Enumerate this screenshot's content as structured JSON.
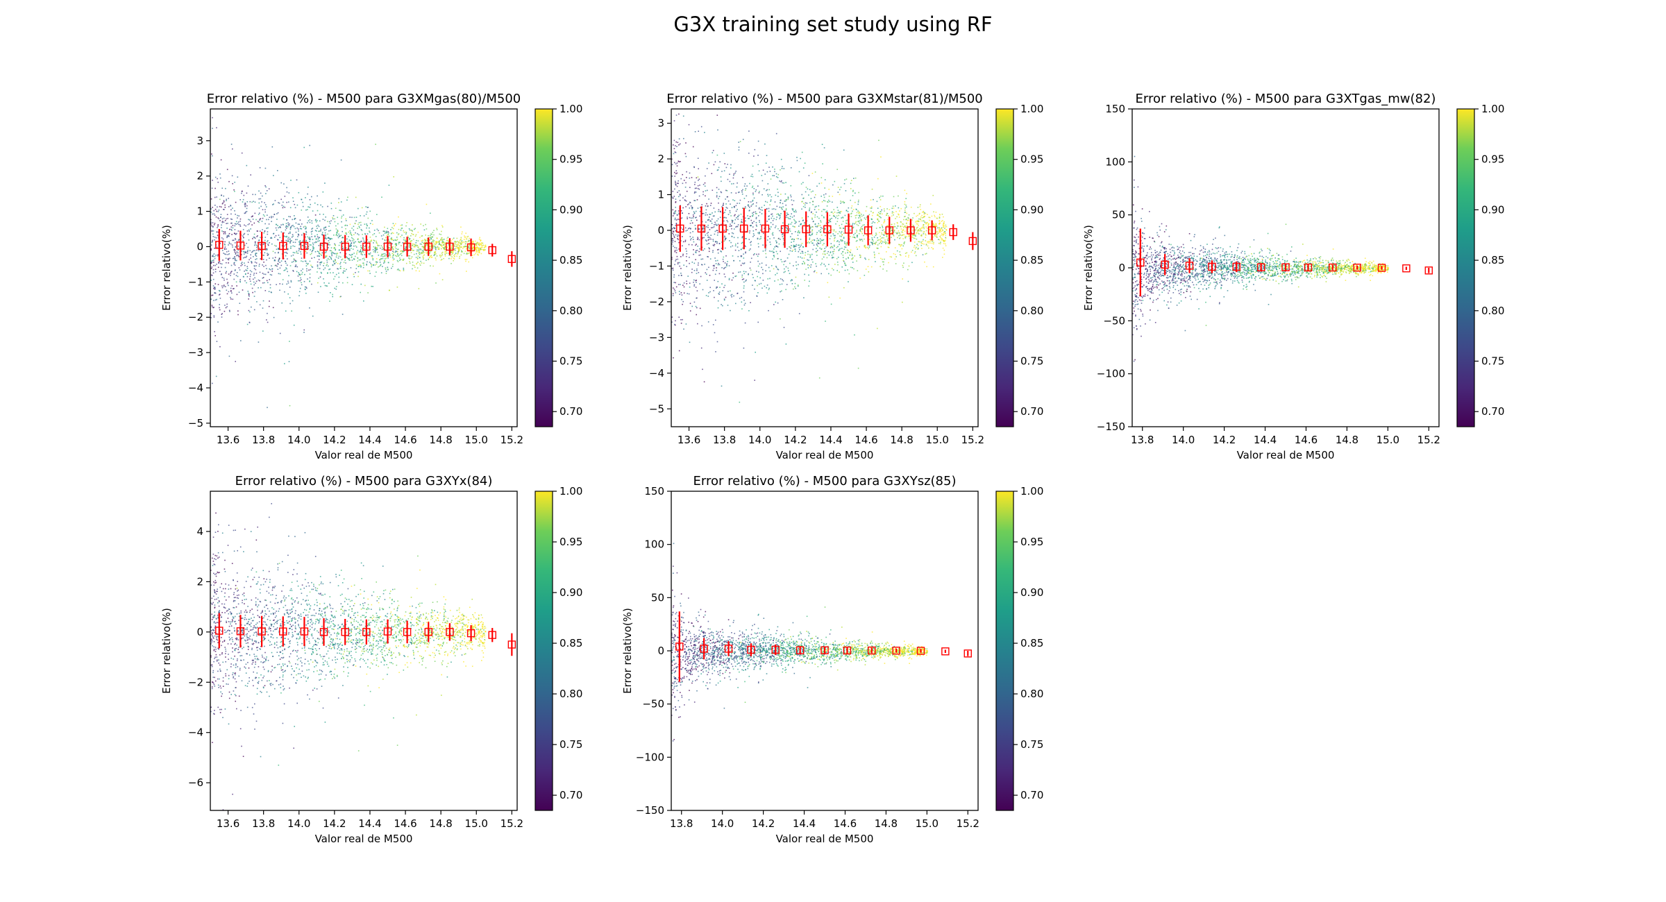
{
  "suptitle": "G3X training set study using RF",
  "colorbar": {
    "min": 0.685,
    "max": 1.0,
    "ticks": [
      "0.70",
      "0.75",
      "0.80",
      "0.85",
      "0.90",
      "0.95",
      "1.00"
    ],
    "tick_values": [
      0.7,
      0.75,
      0.8,
      0.85,
      0.9,
      0.95,
      1.0
    ],
    "colormap": "viridis"
  },
  "chart_data": [
    {
      "type": "scatter",
      "title": "Error relativo (%) - M500 para G3XMgas(80)/M500",
      "xlabel": "Valor real de M500",
      "ylabel": "Error relativo(%)",
      "xlim": [
        13.5,
        15.23
      ],
      "ylim": [
        -5.1,
        3.9
      ],
      "xticks": [
        13.6,
        13.8,
        14.0,
        14.2,
        14.4,
        14.6,
        14.8,
        15.0,
        15.2
      ],
      "xticklabels": [
        "13.6",
        "13.8",
        "14.0",
        "14.2",
        "14.4",
        "14.6",
        "14.8",
        "15.0",
        "15.2"
      ],
      "yticks": [
        -5,
        -4,
        -3,
        -2,
        -1,
        0,
        1,
        2,
        3
      ],
      "yticklabels": [
        "−5",
        "−4",
        "−3",
        "−2",
        "−1",
        "0",
        "1",
        "2",
        "3"
      ],
      "errorbars": {
        "x": [
          13.55,
          13.67,
          13.79,
          13.91,
          14.03,
          14.14,
          14.26,
          14.38,
          14.5,
          14.61,
          14.73,
          14.85,
          14.97,
          15.09,
          15.2
        ],
        "mean": [
          0.05,
          0.03,
          0.02,
          0.02,
          0.02,
          0.0,
          0.0,
          0.0,
          0.0,
          0.0,
          0.0,
          0.0,
          -0.02,
          -0.1,
          -0.35
        ],
        "err": [
          0.45,
          0.42,
          0.4,
          0.38,
          0.36,
          0.34,
          0.33,
          0.32,
          0.3,
          0.28,
          0.26,
          0.24,
          0.25,
          0.18,
          0.22
        ]
      },
      "scatter_spread": [
        1.1,
        0.95,
        0.85,
        0.75,
        0.65,
        0.55,
        0.45,
        0.35,
        0.28,
        0.2,
        0.15,
        0.1
      ],
      "scatter_xmax": 15.05
    },
    {
      "type": "scatter",
      "title": "Error relativo (%) - M500 para G3XMstar(81)/M500",
      "xlabel": "Valor real de M500",
      "ylabel": "Error relativo(%)",
      "xlim": [
        13.5,
        15.23
      ],
      "ylim": [
        -5.5,
        3.4
      ],
      "xticks": [
        13.6,
        13.8,
        14.0,
        14.2,
        14.4,
        14.6,
        14.8,
        15.0,
        15.2
      ],
      "xticklabels": [
        "13.6",
        "13.8",
        "14.0",
        "14.2",
        "14.4",
        "14.6",
        "14.8",
        "15.0",
        "15.2"
      ],
      "yticks": [
        -5,
        -4,
        -3,
        -2,
        -1,
        0,
        1,
        2,
        3
      ],
      "yticklabels": [
        "−5",
        "−4",
        "−3",
        "−2",
        "−1",
        "0",
        "1",
        "2",
        "3"
      ],
      "errorbars": {
        "x": [
          13.55,
          13.67,
          13.79,
          13.91,
          14.03,
          14.14,
          14.26,
          14.38,
          14.5,
          14.61,
          14.73,
          14.85,
          14.97,
          15.09,
          15.2
        ],
        "mean": [
          0.05,
          0.05,
          0.05,
          0.05,
          0.05,
          0.03,
          0.03,
          0.03,
          0.02,
          0.0,
          0.0,
          0.0,
          0.0,
          -0.05,
          -0.3
        ],
        "err": [
          0.65,
          0.62,
          0.6,
          0.58,
          0.55,
          0.52,
          0.5,
          0.48,
          0.45,
          0.42,
          0.38,
          0.32,
          0.28,
          0.22,
          0.25
        ]
      },
      "scatter_spread": [
        1.3,
        1.2,
        1.1,
        1.0,
        0.9,
        0.8,
        0.7,
        0.6,
        0.5,
        0.4,
        0.3,
        0.2
      ],
      "scatter_xmax": 15.05
    },
    {
      "type": "scatter",
      "title": "Error relativo (%) - M500 para G3XTgas_mw(82)",
      "xlabel": "Valor real de M500",
      "ylabel": "Error relativo(%)",
      "xlim": [
        13.75,
        15.25
      ],
      "ylim": [
        -150,
        150
      ],
      "xticks": [
        13.8,
        14.0,
        14.2,
        14.4,
        14.6,
        14.8,
        15.0,
        15.2
      ],
      "xticklabels": [
        "13.8",
        "14.0",
        "14.2",
        "14.4",
        "14.6",
        "14.8",
        "15.0",
        "15.2"
      ],
      "yticks": [
        -150,
        -100,
        -50,
        0,
        50,
        100,
        150
      ],
      "yticklabels": [
        "−150",
        "−100",
        "−50",
        "0",
        "50",
        "100",
        "150"
      ],
      "errorbars": {
        "x": [
          13.79,
          13.91,
          14.03,
          14.14,
          14.26,
          14.38,
          14.5,
          14.61,
          14.73,
          14.85,
          14.97,
          15.09,
          15.2
        ],
        "mean": [
          5,
          3,
          2,
          1,
          1,
          0.5,
          0.5,
          0.3,
          0.3,
          0.2,
          0,
          -0.5,
          -2.5
        ],
        "err": [
          32,
          10,
          7,
          6,
          5,
          4,
          3.5,
          3,
          2.5,
          2,
          1.8,
          1.5,
          2.5
        ]
      },
      "scatter_spread": [
        25,
        15,
        11,
        9,
        7,
        6,
        5,
        4,
        3,
        2.5,
        2
      ],
      "scatter_xmax": 15.0
    },
    {
      "type": "scatter",
      "title": "Error relativo (%) - M500 para G3XYx(84)",
      "xlabel": "Valor real de M500",
      "ylabel": "Error relativo(%)",
      "xlim": [
        13.5,
        15.23
      ],
      "ylim": [
        -7.1,
        5.6
      ],
      "xticks": [
        13.6,
        13.8,
        14.0,
        14.2,
        14.4,
        14.6,
        14.8,
        15.0,
        15.2
      ],
      "xticklabels": [
        "13.6",
        "13.8",
        "14.0",
        "14.2",
        "14.4",
        "14.6",
        "14.8",
        "15.0",
        "15.2"
      ],
      "yticks": [
        -6,
        -4,
        -2,
        0,
        2,
        4
      ],
      "yticklabels": [
        "−6",
        "−4",
        "−2",
        "0",
        "2",
        "4"
      ],
      "errorbars": {
        "x": [
          13.55,
          13.67,
          13.79,
          13.91,
          14.03,
          14.14,
          14.26,
          14.38,
          14.5,
          14.61,
          14.73,
          14.85,
          14.97,
          15.09,
          15.2
        ],
        "mean": [
          0.05,
          0.03,
          0.02,
          0.02,
          0.02,
          0.0,
          0.0,
          0.0,
          0.02,
          0.0,
          0.0,
          0.0,
          -0.05,
          -0.12,
          -0.5
        ],
        "err": [
          0.7,
          0.65,
          0.62,
          0.6,
          0.58,
          0.55,
          0.52,
          0.5,
          0.48,
          0.45,
          0.4,
          0.35,
          0.32,
          0.28,
          0.45
        ]
      },
      "scatter_spread": [
        1.6,
        1.4,
        1.25,
        1.1,
        1.0,
        0.9,
        0.8,
        0.7,
        0.6,
        0.5,
        0.4,
        0.3
      ],
      "scatter_xmax": 15.05
    },
    {
      "type": "scatter",
      "title": "Error relativo (%) - M500 para G3XYsz(85)",
      "xlabel": "Valor real de M500",
      "ylabel": "Error relativo(%)",
      "xlim": [
        13.75,
        15.25
      ],
      "ylim": [
        -150,
        150
      ],
      "xticks": [
        13.8,
        14.0,
        14.2,
        14.4,
        14.6,
        14.8,
        15.0,
        15.2
      ],
      "xticklabels": [
        "13.8",
        "14.0",
        "14.2",
        "14.4",
        "14.6",
        "14.8",
        "15.0",
        "15.2"
      ],
      "yticks": [
        -150,
        -100,
        -50,
        0,
        50,
        100,
        150
      ],
      "yticklabels": [
        "−150",
        "−100",
        "−50",
        "0",
        "50",
        "100",
        "150"
      ],
      "errorbars": {
        "x": [
          13.79,
          13.91,
          14.03,
          14.14,
          14.26,
          14.38,
          14.5,
          14.61,
          14.73,
          14.85,
          14.97,
          15.09,
          15.2
        ],
        "mean": [
          4,
          2,
          2,
          1,
          1,
          0.5,
          0.5,
          0.3,
          0.3,
          0.2,
          0,
          -0.5,
          -2.5
        ],
        "err": [
          33,
          10,
          7,
          6,
          5,
          4,
          3.5,
          3,
          2.5,
          2,
          1.8,
          1.5,
          2.5
        ]
      },
      "scatter_spread": [
        24,
        14,
        10,
        8,
        7,
        6,
        5,
        4,
        3,
        2.5,
        2
      ],
      "scatter_xmax": 15.0
    }
  ]
}
